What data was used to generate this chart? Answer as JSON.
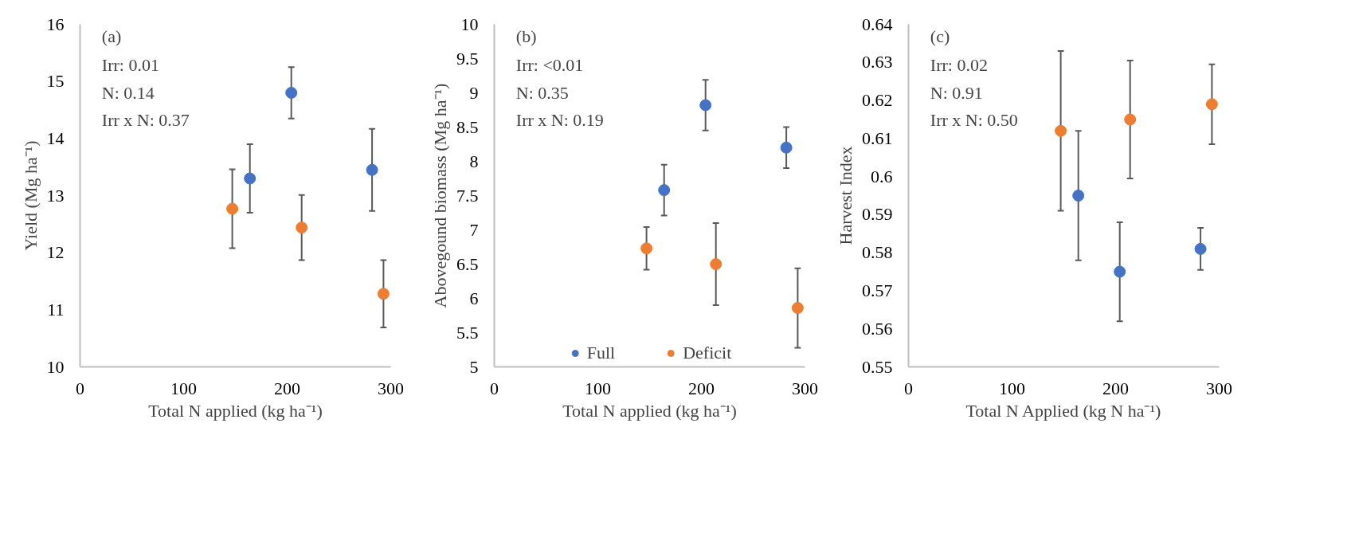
{
  "chart_data": [
    {
      "type": "scatter",
      "xlabel": "Total N applied (kg ha⁻¹)",
      "ylabel": "Yield (Mg ha⁻¹)",
      "annotations": [
        "(a)",
        "Irr: 0.01",
        "N: 0.14",
        "Irr x N: 0.37"
      ],
      "xlim": [
        0,
        300
      ],
      "xticks": [
        0,
        100,
        200,
        300
      ],
      "ylim": [
        10,
        16
      ],
      "yticks": [
        10,
        11,
        12,
        13,
        14,
        15,
        16
      ],
      "grid": false,
      "legend": false,
      "marker": "circle",
      "series": [
        {
          "color": "#4472c4",
          "x": [
            164,
            204,
            282
          ],
          "values": [
            13.3,
            14.8,
            13.45
          ],
          "errors": [
            0.6,
            0.45,
            0.72
          ]
        },
        {
          "color": "#ed7d31",
          "x": [
            147,
            214,
            293
          ],
          "values": [
            12.77,
            12.44,
            11.28
          ],
          "errors": [
            0.69,
            0.57,
            0.59
          ]
        }
      ]
    },
    {
      "type": "scatter",
      "xlabel": "Total N applied (kg ha⁻¹)",
      "ylabel": "Abovegound biomass (Mg ha⁻¹)",
      "annotations": [
        "(b)",
        "Irr: <0.01",
        "N: 0.35",
        "Irr x N: 0.19"
      ],
      "xlim": [
        0,
        300
      ],
      "xticks": [
        0,
        100,
        200,
        300
      ],
      "ylim": [
        5,
        10
      ],
      "yticks": [
        5,
        {
          "value": 5.5,
          "label": "5.5"
        },
        6,
        {
          "value": 6.5,
          "label": "6.5"
        },
        7,
        {
          "value": 7.5,
          "label": "7.5"
        },
        8,
        {
          "value": 8.5,
          "label": "8.5"
        },
        9,
        {
          "value": 9.5,
          "label": "9.5"
        },
        10
      ],
      "grid": false,
      "legend": "bottom",
      "marker": "circle",
      "series": [
        {
          "name": "Full",
          "color": "#4472c4",
          "x": [
            164,
            204,
            282
          ],
          "values": [
            7.58,
            8.82,
            8.2
          ],
          "errors": [
            0.37,
            0.37,
            0.3
          ]
        },
        {
          "name": "Deficit",
          "color": "#ed7d31",
          "x": [
            147,
            214,
            293
          ],
          "values": [
            6.73,
            6.5,
            5.86
          ],
          "errors": [
            0.31,
            0.6,
            0.58
          ]
        }
      ]
    },
    {
      "type": "scatter",
      "xlabel": "Total N Applied (kg N ha⁻¹)",
      "ylabel": "Harvest Index",
      "annotations": [
        "(c)",
        "Irr: 0.02",
        "N: 0.91",
        "Irr x N: 0.50"
      ],
      "xlim": [
        0,
        300
      ],
      "xticks": [
        0,
        100,
        200,
        300
      ],
      "ylim": [
        0.55,
        0.64
      ],
      "yticks": [
        0.55,
        0.56,
        0.57,
        0.58,
        0.59,
        {
          "value": 0.6,
          "label": "0.6"
        },
        0.61,
        0.62,
        0.63,
        0.64
      ],
      "grid": false,
      "legend": false,
      "marker": "circle",
      "series": [
        {
          "color": "#4472c4",
          "x": [
            164,
            204,
            282
          ],
          "values": [
            0.595,
            0.575,
            0.581
          ],
          "errors": [
            0.017,
            0.013,
            0.0055
          ]
        },
        {
          "color": "#ed7d31",
          "x": [
            147,
            214,
            293
          ],
          "values": [
            0.612,
            0.615,
            0.619
          ],
          "errors": [
            0.021,
            0.0155,
            0.0105
          ]
        }
      ]
    }
  ]
}
